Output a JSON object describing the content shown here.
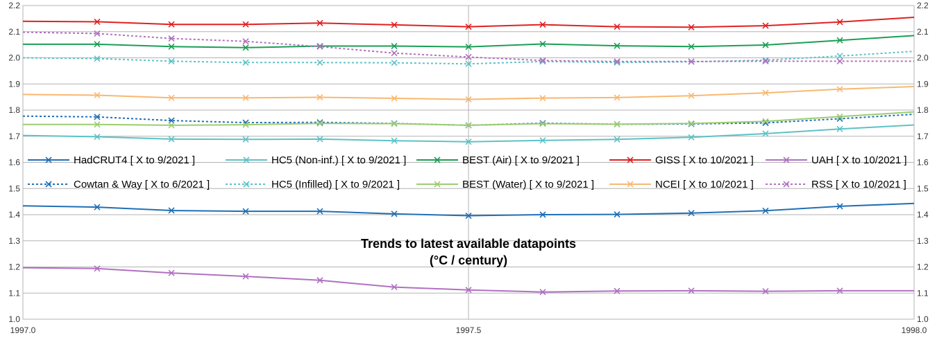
{
  "chart_data": {
    "type": "line",
    "title": "Trends to latest available datapoints",
    "subtitle": "(°C / century)",
    "xlabel": "",
    "ylabel": "",
    "xlim": [
      1997.0,
      1998.0
    ],
    "ylim": [
      1.0,
      2.2
    ],
    "x_ticks": [
      "1997.0",
      "1997.5",
      "1998.0"
    ],
    "y_ticks": [
      "1.0",
      "1.1",
      "1.2",
      "1.3",
      "1.4",
      "1.5",
      "1.6",
      "1.7",
      "1.8",
      "1.9",
      "2.0",
      "2.1",
      "2.2"
    ],
    "grid": true,
    "legend_position": "middle",
    "x": [
      1997.0,
      1997.0833,
      1997.1667,
      1997.25,
      1997.3333,
      1997.4167,
      1997.5,
      1997.5833,
      1997.6667,
      1997.75,
      1997.8333,
      1997.9167,
      1998.0
    ],
    "series": [
      {
        "name": "HadCRUT4 [ X to 9/2021 ]",
        "color": "#1f6fb5",
        "dash": "solid",
        "values": [
          1.434,
          1.429,
          1.416,
          1.413,
          1.413,
          1.403,
          1.396,
          1.4,
          1.401,
          1.406,
          1.415,
          1.432,
          1.443
        ]
      },
      {
        "name": "HC5 (Non-inf.) [ X to 9/2021 ]",
        "color": "#5cc2c6",
        "dash": "solid",
        "values": [
          1.703,
          1.698,
          1.689,
          1.688,
          1.689,
          1.683,
          1.679,
          1.684,
          1.688,
          1.696,
          1.71,
          1.728,
          1.743
        ]
      },
      {
        "name": "BEST (Air) [ X to 9/2021 ]",
        "color": "#1a9e55",
        "dash": "solid",
        "values": [
          2.052,
          2.052,
          2.043,
          2.039,
          2.045,
          2.045,
          2.042,
          2.053,
          2.046,
          2.043,
          2.049,
          2.067,
          2.085
        ]
      },
      {
        "name": "GISS [ X to 10/2021 ]",
        "color": "#e02020",
        "dash": "solid",
        "values": [
          2.14,
          2.138,
          2.128,
          2.128,
          2.133,
          2.126,
          2.119,
          2.127,
          2.119,
          2.117,
          2.123,
          2.137,
          2.155
        ]
      },
      {
        "name": "UAH [ X to 10/2021 ]",
        "color": "#b070c0",
        "dash": "solid",
        "values": [
          1.197,
          1.194,
          1.177,
          1.164,
          1.149,
          1.123,
          1.112,
          1.104,
          1.108,
          1.109,
          1.107,
          1.109,
          1.109
        ]
      },
      {
        "name": "Cowtan & Way [ X to 6/2021 ]",
        "color": "#1f6fb5",
        "dash": "dashed",
        "values": [
          1.777,
          1.774,
          1.76,
          1.752,
          1.753,
          1.749,
          1.742,
          1.75,
          1.746,
          1.747,
          1.751,
          1.767,
          1.784
        ]
      },
      {
        "name": "HC5 (Infilled) [ X to 9/2021 ]",
        "color": "#5cc2c6",
        "dash": "dashed",
        "values": [
          2.0,
          1.997,
          1.987,
          1.982,
          1.982,
          1.981,
          1.977,
          1.986,
          1.982,
          1.985,
          1.991,
          2.007,
          2.025
        ]
      },
      {
        "name": "BEST (Water) [ X to 9/2021 ]",
        "color": "#9ccc70",
        "dash": "solid",
        "values": [
          1.745,
          1.745,
          1.742,
          1.744,
          1.749,
          1.748,
          1.742,
          1.748,
          1.746,
          1.749,
          1.757,
          1.775,
          1.793
        ]
      },
      {
        "name": "NCEI [ X to 10/2021 ]",
        "color": "#f8b870",
        "dash": "solid",
        "values": [
          1.86,
          1.857,
          1.847,
          1.847,
          1.849,
          1.845,
          1.841,
          1.846,
          1.848,
          1.855,
          1.866,
          1.88,
          1.89
        ]
      },
      {
        "name": "RSS [ X to 10/2021 ]",
        "color": "#b070c0",
        "dash": "dashed",
        "values": [
          2.098,
          2.093,
          2.074,
          2.063,
          2.043,
          2.018,
          2.003,
          1.99,
          1.986,
          1.986,
          1.987,
          1.987,
          1.987
        ]
      }
    ]
  }
}
